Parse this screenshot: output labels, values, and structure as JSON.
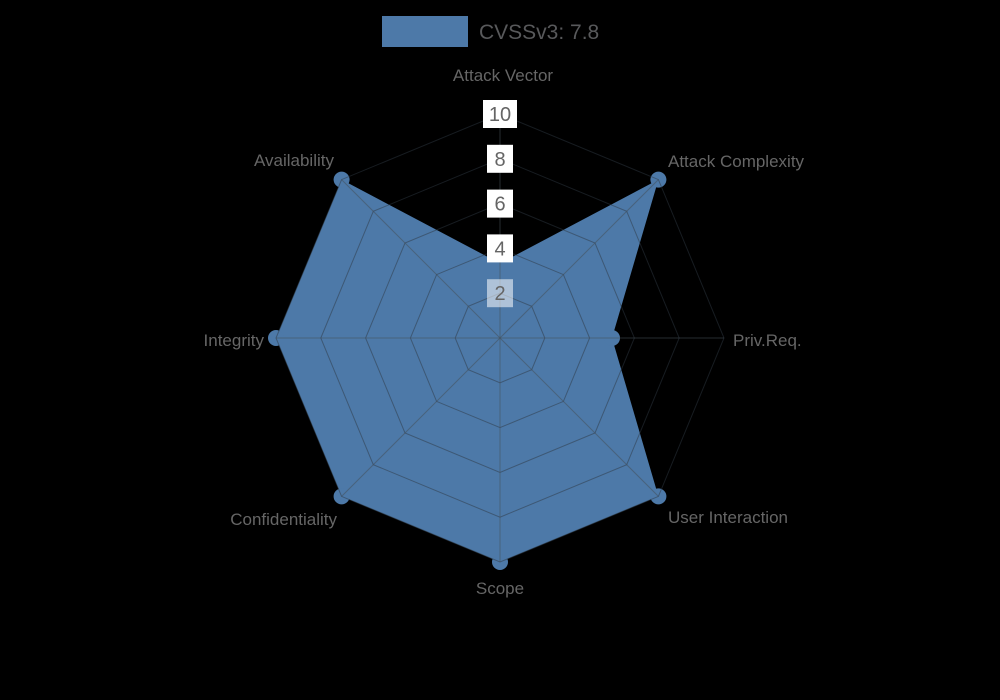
{
  "legend": {
    "label": "CVSSv3: 7.8",
    "swatch_color": "#4d79a8"
  },
  "chart_data": {
    "type": "radar",
    "title": "CVSSv3: 7.8",
    "score": 7.8,
    "axes": [
      {
        "label": "Attack Vector",
        "value": 3.33
      },
      {
        "label": "Attack Complexity",
        "value": 10
      },
      {
        "label": "Priv.Req.",
        "value": 5
      },
      {
        "label": "User Interaction",
        "value": 10
      },
      {
        "label": "Scope",
        "value": 10
      },
      {
        "label": "Confidentiality",
        "value": 10
      },
      {
        "label": "Integrity",
        "value": 10
      },
      {
        "label": "Availability",
        "value": 10
      }
    ],
    "ticks": [
      2,
      4,
      6,
      8,
      10
    ],
    "max": 10,
    "grid_shape": "web-octagon",
    "legend_position": "top-center",
    "series_color": "#4d79a8"
  },
  "colors": {
    "background": "#000000",
    "series_fill": "#4d79a8",
    "axis_label_text": "#666666",
    "tick_text": "#656565",
    "tick_box": "#ffffff",
    "legend_text": "#58595b"
  }
}
